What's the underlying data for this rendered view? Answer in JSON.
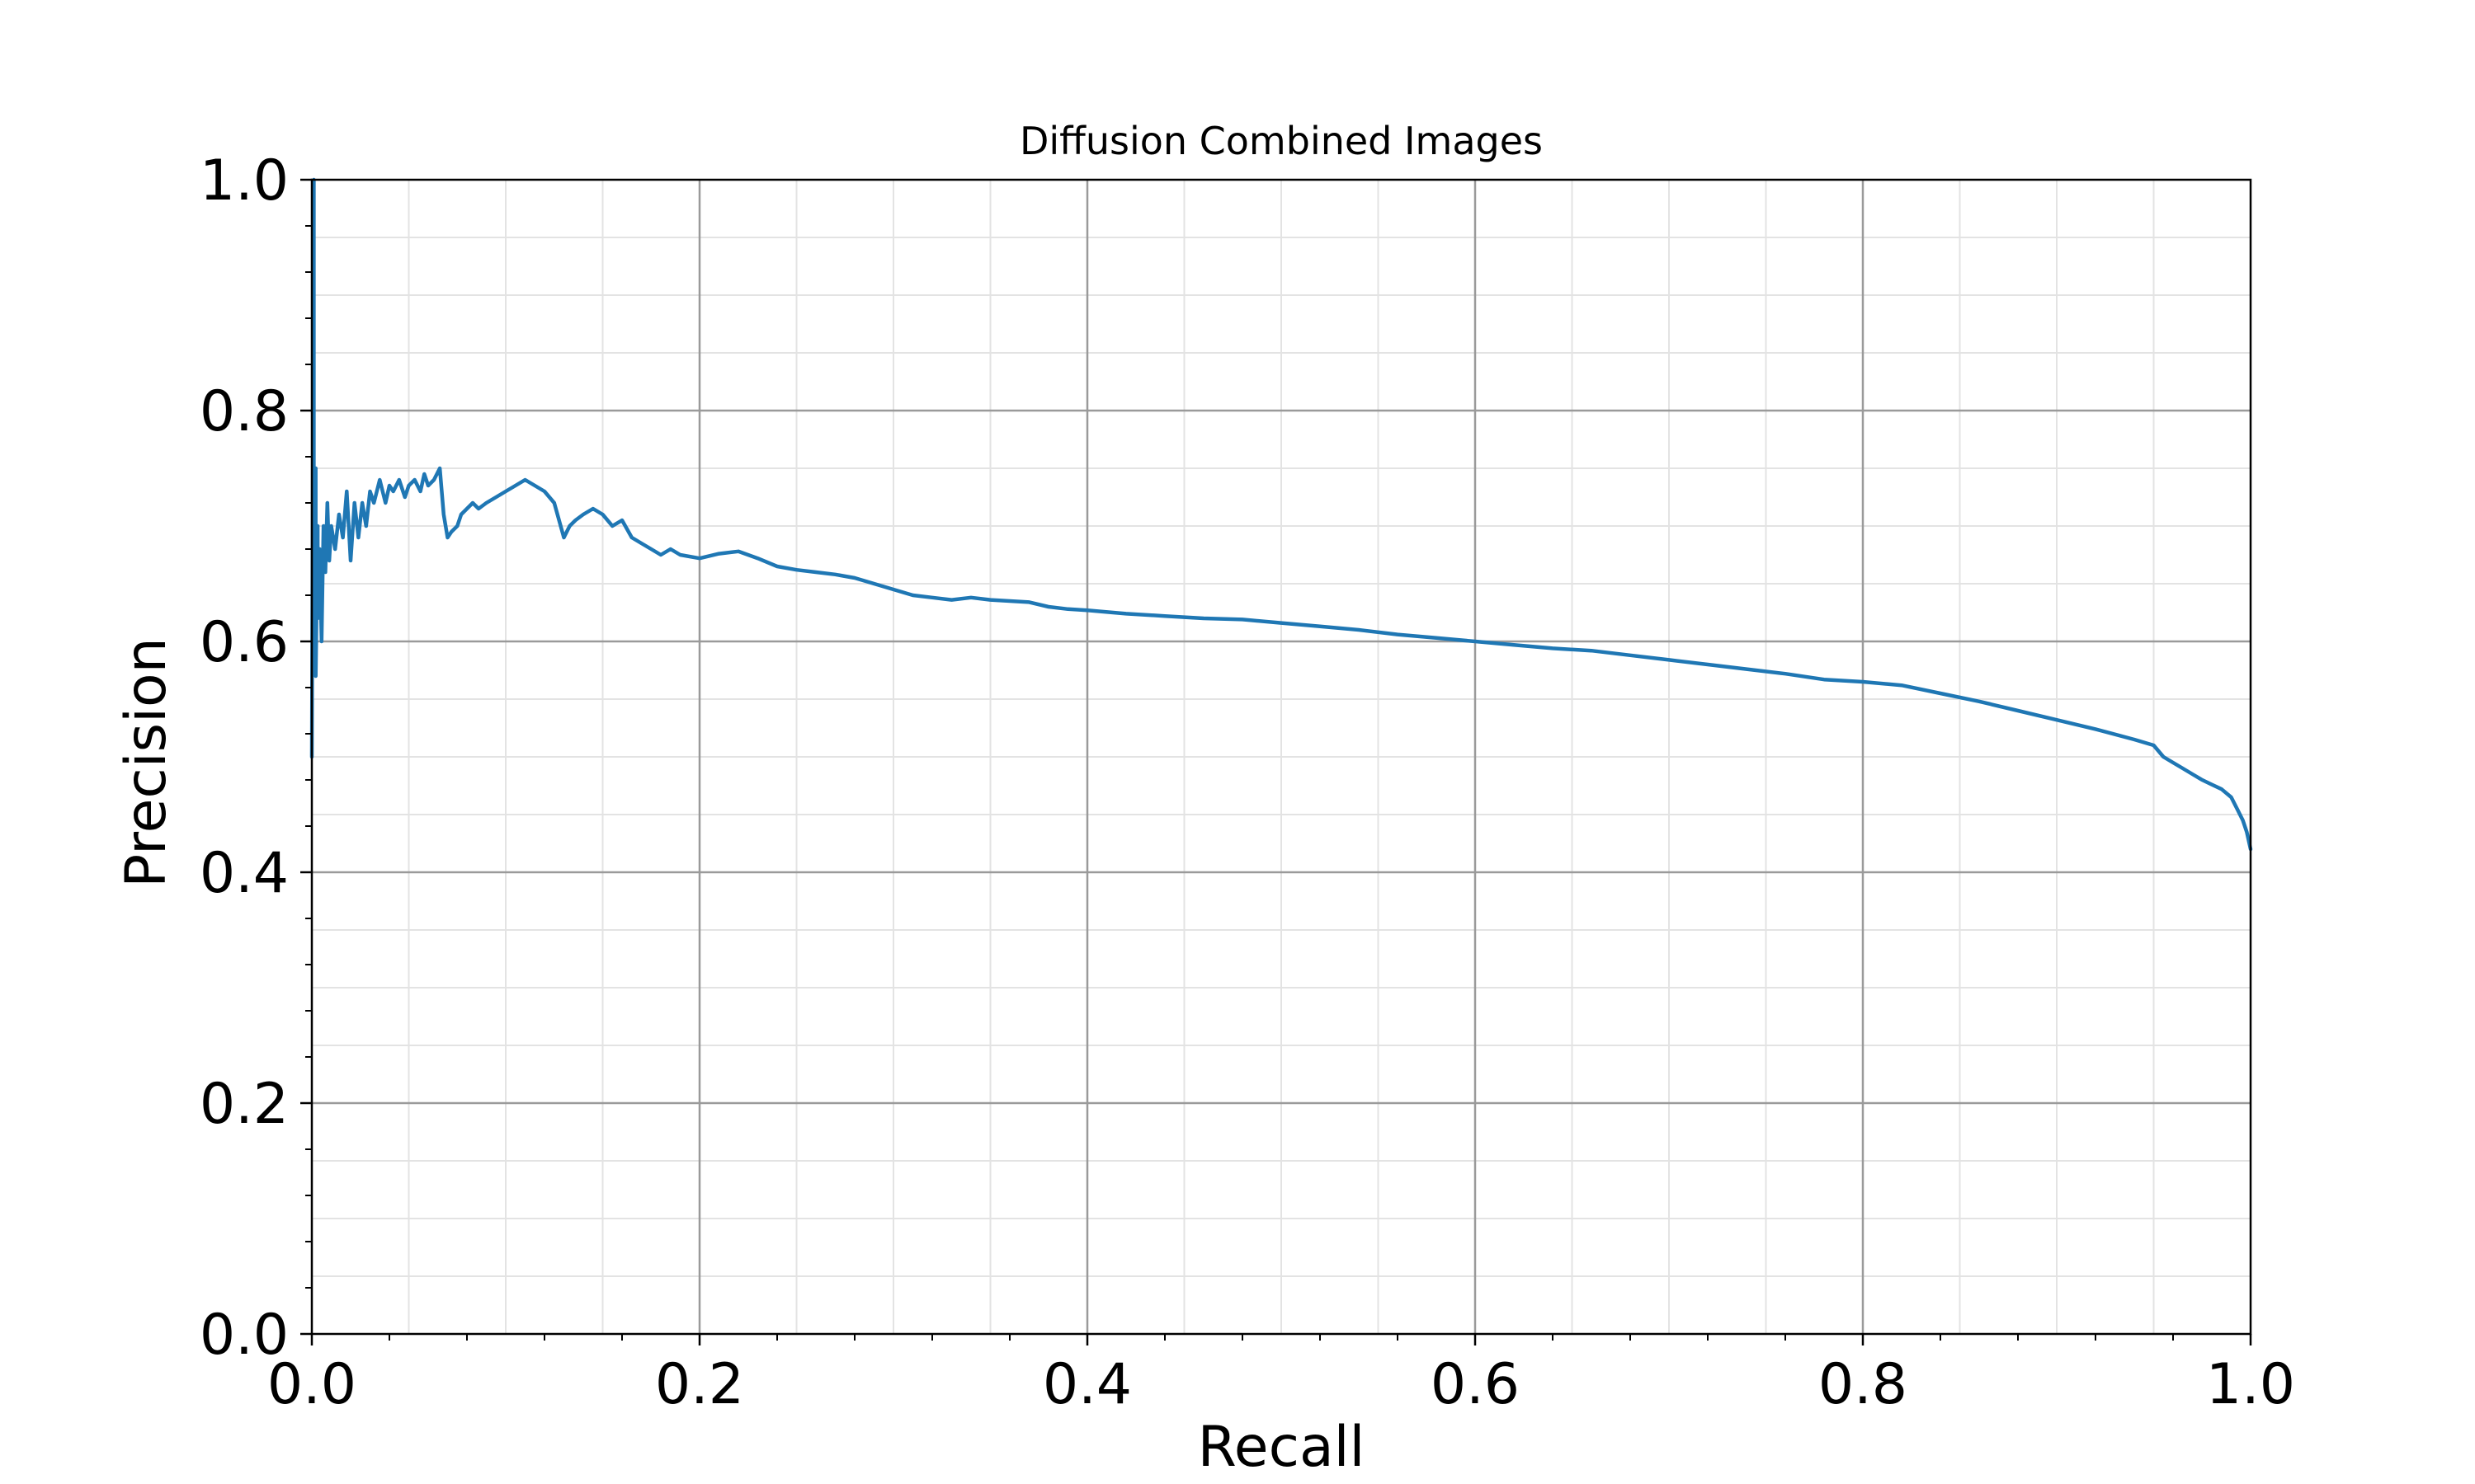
{
  "chart_data": {
    "type": "line",
    "title": "Diffusion Combined Images",
    "xlabel": "Recall",
    "ylabel": "Precision",
    "xlim": [
      0.0,
      1.0
    ],
    "ylim": [
      0.0,
      1.0
    ],
    "xticks": [
      "0.0",
      "0.2",
      "0.4",
      "0.6",
      "0.8",
      "1.0"
    ],
    "yticks": [
      "0.0",
      "0.2",
      "0.4",
      "0.6",
      "0.8",
      "1.0"
    ],
    "grid": true,
    "minor_grid": true,
    "line_color": "#1f77b4",
    "series": [
      {
        "x": [
          0.0,
          0.001,
          0.001,
          0.002,
          0.002,
          0.003,
          0.003,
          0.004,
          0.005,
          0.006,
          0.007,
          0.008,
          0.009,
          0.01,
          0.012,
          0.014,
          0.016,
          0.018,
          0.02,
          0.022,
          0.024,
          0.026,
          0.028,
          0.03,
          0.032,
          0.035,
          0.038,
          0.04,
          0.042,
          0.045,
          0.048,
          0.05,
          0.053,
          0.056,
          0.058,
          0.06,
          0.063,
          0.066,
          0.068,
          0.07,
          0.072,
          0.075,
          0.077,
          0.08,
          0.083,
          0.086,
          0.09,
          0.095,
          0.1,
          0.105,
          0.11,
          0.115,
          0.12,
          0.125,
          0.13,
          0.133,
          0.136,
          0.14,
          0.145,
          0.15,
          0.155,
          0.16,
          0.165,
          0.17,
          0.175,
          0.18,
          0.185,
          0.19,
          0.2,
          0.21,
          0.22,
          0.23,
          0.24,
          0.25,
          0.26,
          0.27,
          0.28,
          0.29,
          0.3,
          0.31,
          0.32,
          0.33,
          0.34,
          0.35,
          0.36,
          0.37,
          0.38,
          0.39,
          0.4,
          0.42,
          0.44,
          0.46,
          0.48,
          0.5,
          0.52,
          0.54,
          0.56,
          0.58,
          0.6,
          0.62,
          0.64,
          0.66,
          0.68,
          0.7,
          0.72,
          0.74,
          0.76,
          0.78,
          0.8,
          0.82,
          0.84,
          0.86,
          0.88,
          0.9,
          0.92,
          0.94,
          0.95,
          0.955,
          0.96,
          0.965,
          0.97,
          0.975,
          0.98,
          0.985,
          0.99,
          0.993,
          0.996,
          0.998,
          1.0
        ],
        "y": [
          0.5,
          1.0,
          0.6,
          0.75,
          0.57,
          0.7,
          0.62,
          0.68,
          0.6,
          0.7,
          0.66,
          0.72,
          0.67,
          0.7,
          0.68,
          0.71,
          0.69,
          0.73,
          0.67,
          0.72,
          0.69,
          0.72,
          0.7,
          0.73,
          0.72,
          0.74,
          0.72,
          0.735,
          0.73,
          0.74,
          0.725,
          0.735,
          0.74,
          0.73,
          0.745,
          0.735,
          0.74,
          0.75,
          0.71,
          0.69,
          0.695,
          0.7,
          0.71,
          0.715,
          0.72,
          0.715,
          0.72,
          0.725,
          0.73,
          0.735,
          0.74,
          0.735,
          0.73,
          0.72,
          0.69,
          0.7,
          0.705,
          0.71,
          0.715,
          0.71,
          0.7,
          0.705,
          0.69,
          0.685,
          0.68,
          0.675,
          0.68,
          0.675,
          0.672,
          0.676,
          0.678,
          0.672,
          0.665,
          0.662,
          0.66,
          0.658,
          0.655,
          0.65,
          0.645,
          0.64,
          0.638,
          0.636,
          0.638,
          0.636,
          0.635,
          0.634,
          0.63,
          0.628,
          0.627,
          0.624,
          0.622,
          0.62,
          0.619,
          0.616,
          0.613,
          0.61,
          0.606,
          0.603,
          0.6,
          0.597,
          0.594,
          0.592,
          0.588,
          0.584,
          0.58,
          0.576,
          0.572,
          0.567,
          0.565,
          0.562,
          0.555,
          0.548,
          0.54,
          0.532,
          0.524,
          0.515,
          0.51,
          0.5,
          0.495,
          0.49,
          0.485,
          0.48,
          0.476,
          0.472,
          0.465,
          0.455,
          0.445,
          0.435,
          0.42
        ]
      }
    ]
  }
}
